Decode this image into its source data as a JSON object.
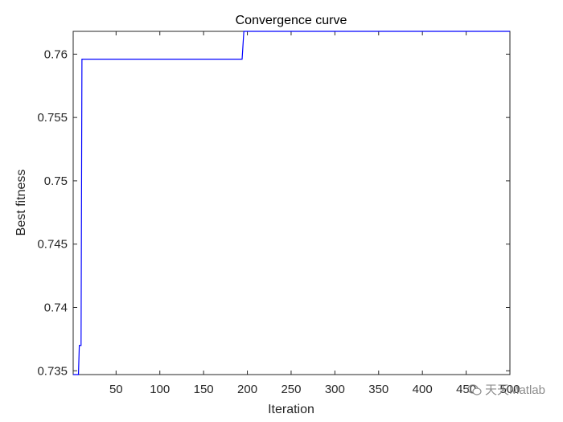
{
  "chart_data": {
    "type": "line",
    "title": "Convergence curve",
    "xlabel": "Iteration",
    "ylabel": "Best fitness",
    "xlim": [
      1,
      500
    ],
    "ylim": [
      0.7347,
      0.7618
    ],
    "xticks": [
      50,
      100,
      150,
      200,
      250,
      300,
      350,
      400,
      450,
      500
    ],
    "xtick_labels": [
      "50",
      "100",
      "150",
      "200",
      "250",
      "300",
      "350",
      "400",
      "450",
      "500"
    ],
    "yticks": [
      0.735,
      0.74,
      0.745,
      0.75,
      0.755,
      0.76
    ],
    "ytick_labels": [
      "0.735",
      "0.74",
      "0.745",
      "0.75",
      "0.755",
      "0.76"
    ],
    "grid": false,
    "series": [
      {
        "color": "#0000ff",
        "x": [
          1,
          7,
          8,
          10,
          11,
          194,
          196,
          500
        ],
        "y": [
          0.7347,
          0.7347,
          0.737,
          0.737,
          0.7596,
          0.7596,
          0.7618,
          0.7618
        ]
      }
    ]
  },
  "watermark": {
    "text": "天天Matlab",
    "icon": "wechat-icon"
  }
}
